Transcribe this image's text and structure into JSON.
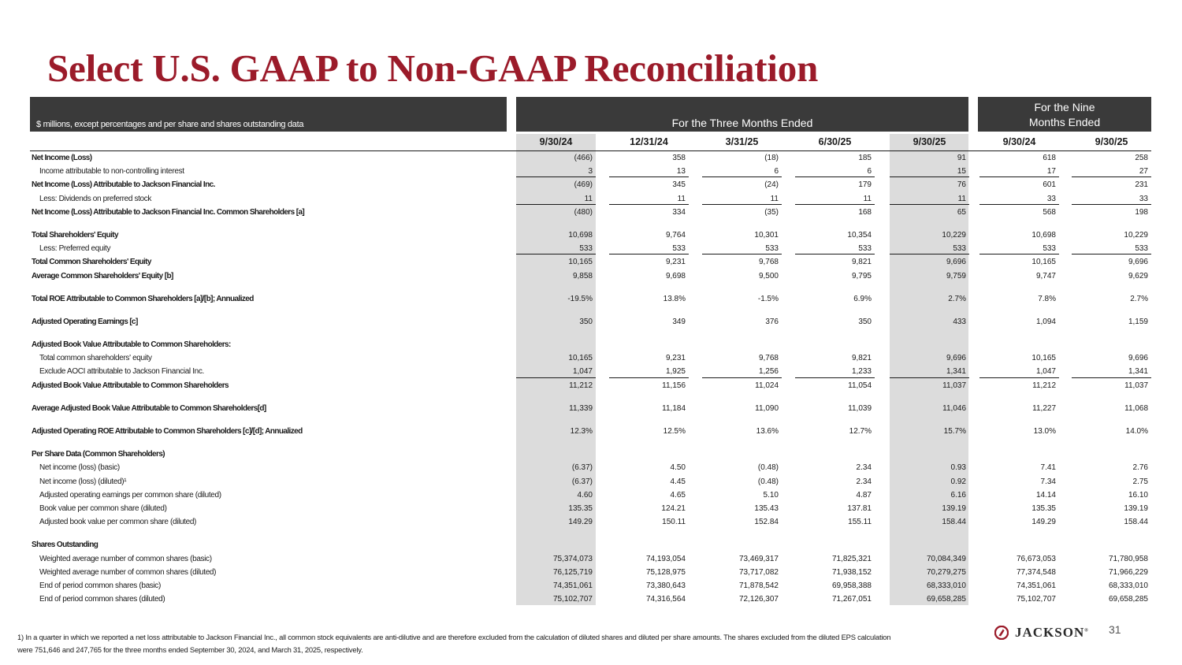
{
  "title": "Select U.S. GAAP to Non-GAAP Reconciliation",
  "header": {
    "units_label": "$ millions, except percentages and per share and shares outstanding data",
    "three_months": "For the Three Months Ended",
    "nine_months_line1": "For the Nine",
    "nine_months_line2": "Months Ended"
  },
  "columns": [
    "9/30/24",
    "12/31/24",
    "3/31/25",
    "6/30/25",
    "9/30/25",
    "9/30/24",
    "9/30/25"
  ],
  "rows": [
    {
      "label": "Net Income (Loss)",
      "style": "bold",
      "values": [
        "(466)",
        "358",
        "(18)",
        "185",
        "91",
        "618",
        "258"
      ]
    },
    {
      "label": "Income attributable to non-controlling interest",
      "style": "indent ul",
      "values": [
        "3",
        "13",
        "6",
        "6",
        "15",
        "17",
        "27"
      ]
    },
    {
      "label": "Net Income (Loss) Attributable to Jackson Financial Inc.",
      "style": "bold",
      "values": [
        "(469)",
        "345",
        "(24)",
        "179",
        "76",
        "601",
        "231"
      ]
    },
    {
      "label": "Less: Dividends on preferred stock",
      "style": "indent ul",
      "values": [
        "11",
        "11",
        "11",
        "11",
        "11",
        "33",
        "33"
      ]
    },
    {
      "label": "Net Income (Loss) Attributable to Jackson Financial Inc. Common Shareholders [a]",
      "style": "bold",
      "values": [
        "(480)",
        "334",
        "(35)",
        "168",
        "65",
        "568",
        "198"
      ]
    },
    {
      "style": "gap"
    },
    {
      "label": "Total Shareholders' Equity",
      "style": "bold",
      "values": [
        "10,698",
        "9,764",
        "10,301",
        "10,354",
        "10,229",
        "10,698",
        "10,229"
      ]
    },
    {
      "label": "Less: Preferred equity",
      "style": "indent ul",
      "values": [
        "533",
        "533",
        "533",
        "533",
        "533",
        "533",
        "533"
      ]
    },
    {
      "label": "Total Common Shareholders' Equity",
      "style": "bold",
      "values": [
        "10,165",
        "9,231",
        "9,768",
        "9,821",
        "9,696",
        "10,165",
        "9,696"
      ]
    },
    {
      "label": "Average Common Shareholders' Equity [b]",
      "style": "bold",
      "values": [
        "9,858",
        "9,698",
        "9,500",
        "9,795",
        "9,759",
        "9,747",
        "9,629"
      ]
    },
    {
      "style": "gap"
    },
    {
      "label": "Total ROE Attributable to Common Shareholders [a]/[b]; Annualized",
      "style": "bold",
      "values": [
        "-19.5%",
        "13.8%",
        "-1.5%",
        "6.9%",
        "2.7%",
        "7.8%",
        "2.7%"
      ]
    },
    {
      "style": "gap"
    },
    {
      "label": "Adjusted Operating Earnings [c]",
      "style": "bold",
      "values": [
        "350",
        "349",
        "376",
        "350",
        "433",
        "1,094",
        "1,159"
      ]
    },
    {
      "style": "gap"
    },
    {
      "label": "Adjusted Book Value Attributable to Common Shareholders:",
      "style": "bold",
      "values": [
        "",
        "",
        "",
        "",
        "",
        "",
        ""
      ]
    },
    {
      "label": "Total common shareholders' equity",
      "style": "indent",
      "values": [
        "10,165",
        "9,231",
        "9,768",
        "9,821",
        "9,696",
        "10,165",
        "9,696"
      ]
    },
    {
      "label": "Exclude AOCI attributable to Jackson Financial Inc.",
      "style": "indent ul",
      "values": [
        "1,047",
        "1,925",
        "1,256",
        "1,233",
        "1,341",
        "1,047",
        "1,341"
      ]
    },
    {
      "label": "Adjusted Book Value Attributable to Common Shareholders",
      "style": "bold",
      "values": [
        "11,212",
        "11,156",
        "11,024",
        "11,054",
        "11,037",
        "11,212",
        "11,037"
      ]
    },
    {
      "style": "gap"
    },
    {
      "label": "Average Adjusted Book Value Attributable to Common Shareholders[d]",
      "style": "bold",
      "values": [
        "11,339",
        "11,184",
        "11,090",
        "11,039",
        "11,046",
        "11,227",
        "11,068"
      ]
    },
    {
      "style": "gap"
    },
    {
      "label": "Adjusted Operating ROE Attributable to Common Shareholders [c]/[d]; Annualized",
      "style": "bold",
      "values": [
        "12.3%",
        "12.5%",
        "13.6%",
        "12.7%",
        "15.7%",
        "13.0%",
        "14.0%"
      ]
    },
    {
      "style": "gap"
    },
    {
      "label": "Per Share Data (Common Shareholders)",
      "style": "bold",
      "values": [
        "",
        "",
        "",
        "",
        "",
        "",
        ""
      ]
    },
    {
      "label": "Net income (loss) (basic)",
      "style": "indent",
      "values": [
        "(6.37)",
        "4.50",
        "(0.48)",
        "2.34",
        "0.93",
        "7.41",
        "2.76"
      ]
    },
    {
      "label": "Net income (loss) (diluted)¹",
      "style": "indent",
      "values": [
        "(6.37)",
        "4.45",
        "(0.48)",
        "2.34",
        "0.92",
        "7.34",
        "2.75"
      ]
    },
    {
      "label": "Adjusted operating earnings per common share (diluted)",
      "style": "indent",
      "values": [
        "4.60",
        "4.65",
        "5.10",
        "4.87",
        "6.16",
        "14.14",
        "16.10"
      ]
    },
    {
      "label": "Book value per common share (diluted)",
      "style": "indent",
      "values": [
        "135.35",
        "124.21",
        "135.43",
        "137.81",
        "139.19",
        "135.35",
        "139.19"
      ]
    },
    {
      "label": "Adjusted book value per common share (diluted)",
      "style": "indent",
      "values": [
        "149.29",
        "150.11",
        "152.84",
        "155.11",
        "158.44",
        "149.29",
        "158.44"
      ]
    },
    {
      "style": "gap"
    },
    {
      "label": "Shares Outstanding",
      "style": "bold",
      "values": [
        "",
        "",
        "",
        "",
        "",
        "",
        ""
      ]
    },
    {
      "label": "Weighted average number of common shares (basic)",
      "style": "indent",
      "values": [
        "75,374,073",
        "74,193,054",
        "73,469,317",
        "71,825,321",
        "70,084,349",
        "76,673,053",
        "71,780,958"
      ]
    },
    {
      "label": "Weighted average number of common shares (diluted)",
      "style": "indent",
      "values": [
        "76,125,719",
        "75,128,975",
        "73,717,082",
        "71,938,152",
        "70,279,275",
        "77,374,548",
        "71,966,229"
      ]
    },
    {
      "label": "End of period common shares (basic)",
      "style": "indent",
      "values": [
        "74,351,061",
        "73,380,643",
        "71,878,542",
        "69,958,388",
        "68,333,010",
        "74,351,061",
        "68,333,010"
      ]
    },
    {
      "label": "End of period common shares (diluted)",
      "style": "indent",
      "values": [
        "75,102,707",
        "74,316,564",
        "72,126,307",
        "71,267,051",
        "69,658,285",
        "75,102,707",
        "69,658,285"
      ]
    }
  ],
  "footnote": "1) In a quarter in which we reported a net loss attributable to Jackson Financial Inc., all common stock equivalents are anti-dilutive and are therefore excluded from the calculation of diluted shares and diluted per share amounts. The shares excluded from the diluted EPS calculation were 751,646 and 247,765 for the three months ended September 30, 2024, and March 31, 2025, respectively.",
  "logo": {
    "text": "JACKSON",
    "mark": "®",
    "icon": "jackson-logo-icon",
    "color": "#9b1b2a"
  },
  "page_number": "31",
  "colors": {
    "title": "#9b1b2a",
    "header_bg": "#3a3a3a",
    "shade": "#dcdcdc"
  }
}
